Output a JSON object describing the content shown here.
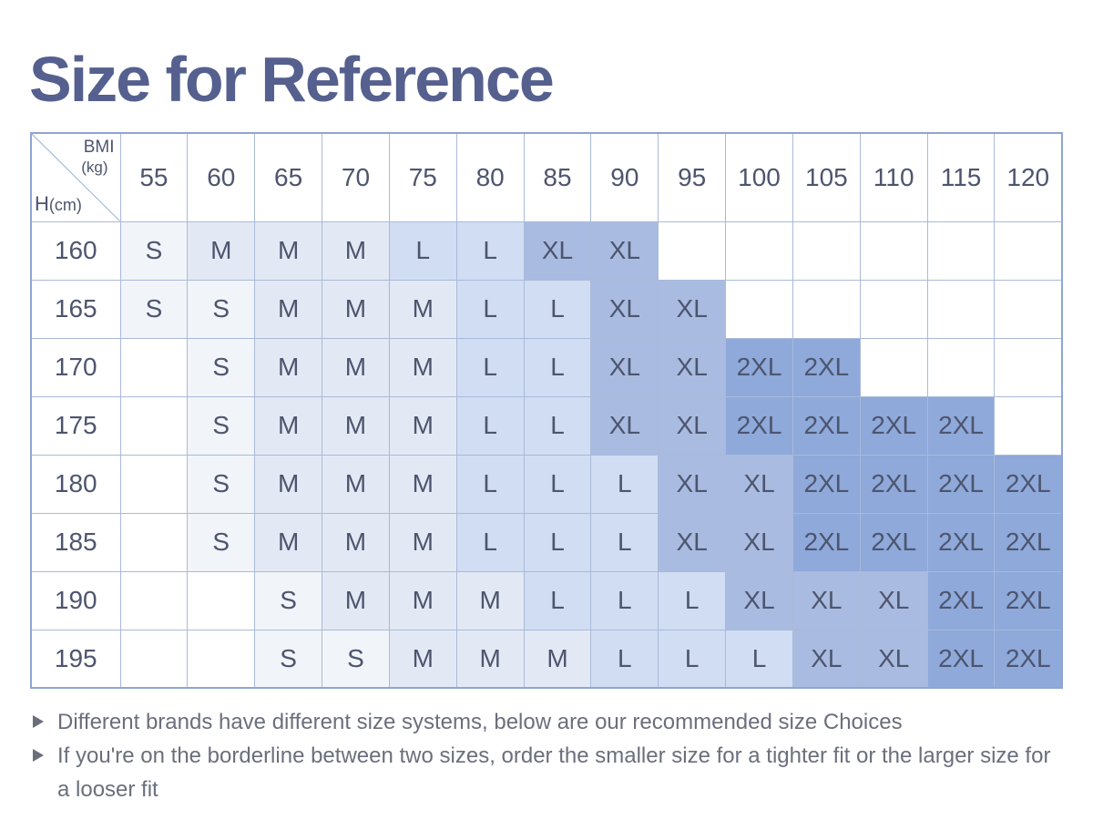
{
  "title": "Size for Reference",
  "table": {
    "corner": {
      "bmi_label": "BMI",
      "weight_unit": "(kg)",
      "height_label": "H",
      "height_unit": "(cm)"
    },
    "columns": [
      "55",
      "60",
      "65",
      "70",
      "75",
      "80",
      "85",
      "90",
      "95",
      "100",
      "105",
      "110",
      "115",
      "120"
    ],
    "rows": [
      {
        "height": "160",
        "sizes": [
          "S",
          "M",
          "M",
          "M",
          "L",
          "L",
          "XL",
          "XL",
          "",
          "",
          "",
          "",
          "",
          ""
        ]
      },
      {
        "height": "165",
        "sizes": [
          "S",
          "S",
          "M",
          "M",
          "M",
          "L",
          "L",
          "XL",
          "XL",
          "",
          "",
          "",
          "",
          ""
        ]
      },
      {
        "height": "170",
        "sizes": [
          "",
          "S",
          "M",
          "M",
          "M",
          "L",
          "L",
          "XL",
          "XL",
          "2XL",
          "2XL",
          "",
          "",
          ""
        ]
      },
      {
        "height": "175",
        "sizes": [
          "",
          "S",
          "M",
          "M",
          "M",
          "L",
          "L",
          "XL",
          "XL",
          "2XL",
          "2XL",
          "2XL",
          "2XL",
          ""
        ]
      },
      {
        "height": "180",
        "sizes": [
          "",
          "S",
          "M",
          "M",
          "M",
          "L",
          "L",
          "L",
          "XL",
          "XL",
          "2XL",
          "2XL",
          "2XL",
          "2XL"
        ]
      },
      {
        "height": "185",
        "sizes": [
          "",
          "S",
          "M",
          "M",
          "M",
          "L",
          "L",
          "L",
          "XL",
          "XL",
          "2XL",
          "2XL",
          "2XL",
          "2XL"
        ]
      },
      {
        "height": "190",
        "sizes": [
          "",
          "",
          "S",
          "M",
          "M",
          "M",
          "L",
          "L",
          "L",
          "XL",
          "XL",
          "XL",
          "2XL",
          "2XL"
        ]
      },
      {
        "height": "195",
        "sizes": [
          "",
          "",
          "S",
          "S",
          "M",
          "M",
          "M",
          "L",
          "L",
          "L",
          "XL",
          "XL",
          "2XL",
          "2XL"
        ]
      }
    ]
  },
  "notes": [
    "Different brands have different size systems, below are our recommended size Choices",
    "If you're on the borderline between two sizes, order the smaller size for a tighter fit or the larger size for a looser fit"
  ],
  "colors": {
    "title": "#55608f",
    "border": "#a9bad9",
    "size_S": "#f1f4f9",
    "size_M": "#e3e9f4",
    "size_L": "#d0ddf3",
    "size_XL": "#a9bbe0",
    "size_2XL": "#8ea9da"
  }
}
